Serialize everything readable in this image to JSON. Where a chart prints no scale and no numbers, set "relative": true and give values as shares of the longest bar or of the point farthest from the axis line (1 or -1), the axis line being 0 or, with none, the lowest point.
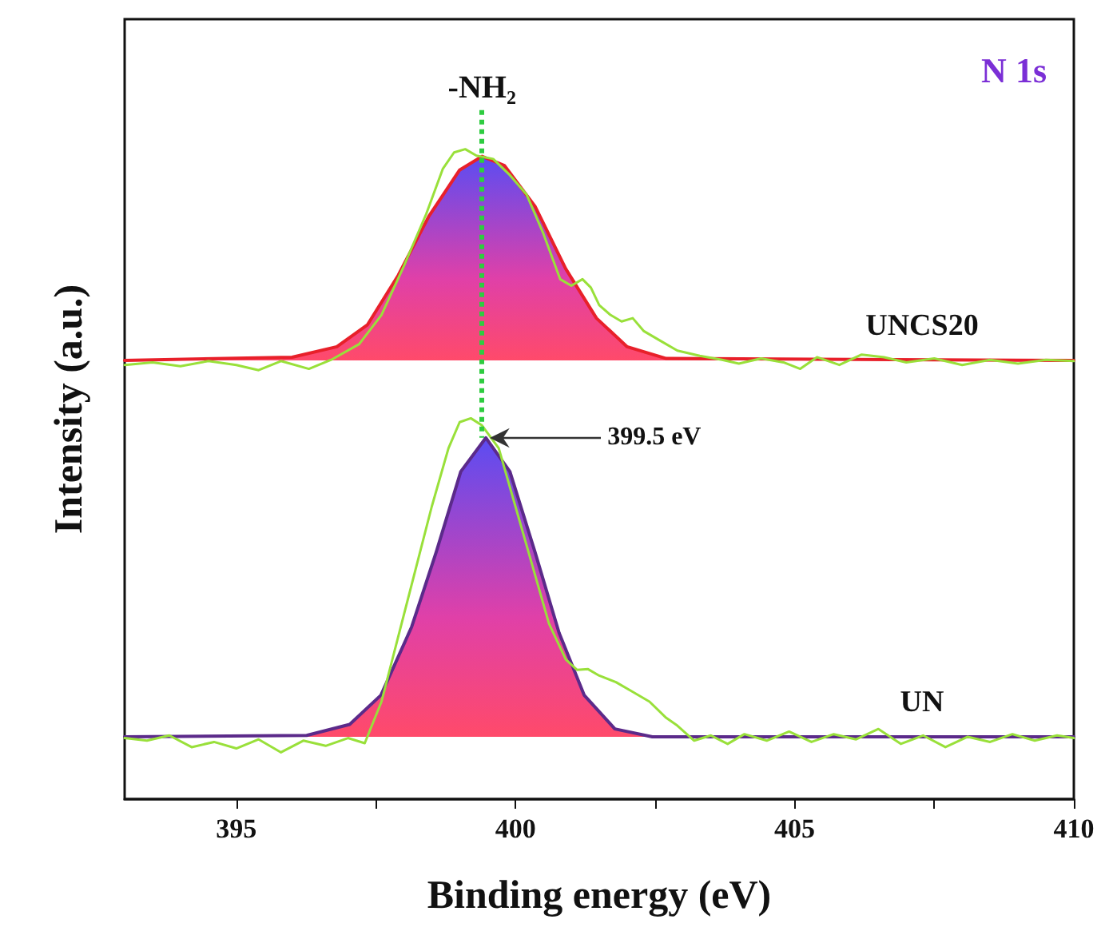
{
  "chart_data": {
    "type": "line",
    "title": "N 1s",
    "xlabel": "Binding energy (eV)",
    "ylabel": "Intensity (a.u.)",
    "relative": true,
    "xlim": [
      393,
      410
    ],
    "xticks": [
      395,
      {
        "value": 397.5,
        "label": null
      },
      400,
      {
        "value": 402.5,
        "label": null
      },
      405,
      {
        "value": 407.5,
        "label": null
      },
      410
    ],
    "grid": false,
    "legend": false,
    "marker": "none",
    "line_style": "solid",
    "series": [
      {
        "name": "UNCS20",
        "type": "area",
        "color": "#e8202a",
        "x": [
          393,
          396,
          396.8,
          397.35,
          397.9,
          398.45,
          399,
          399.4,
          399.8,
          400.35,
          400.9,
          401.45,
          402,
          402.7,
          410
        ],
        "values": [
          0.675,
          0.68,
          0.696,
          0.73,
          0.806,
          0.897,
          0.968,
          0.989,
          0.975,
          0.912,
          0.816,
          0.74,
          0.696,
          0.678,
          0.675
        ]
      },
      {
        "type": "line",
        "color": "#99e03a",
        "x": [
          393,
          393.5,
          394,
          394.5,
          395,
          395.4,
          395.8,
          396.3,
          396.7,
          397.2,
          397.6,
          398,
          398.4,
          398.7,
          398.9,
          399.1,
          399.3,
          399.6,
          399.9,
          400.2,
          400.5,
          400.8,
          401,
          401.2,
          401.35,
          401.5,
          401.7,
          401.9,
          402.1,
          402.3,
          402.6,
          402.9,
          403.3,
          403.7,
          404,
          404.4,
          404.8,
          405.1,
          405.4,
          405.8,
          406.2,
          406.6,
          407,
          407.5,
          408,
          408.5,
          409,
          409.5,
          410
        ],
        "values": [
          0.668,
          0.672,
          0.666,
          0.674,
          0.668,
          0.66,
          0.674,
          0.662,
          0.676,
          0.7,
          0.745,
          0.82,
          0.9,
          0.97,
          0.995,
          1,
          0.99,
          0.985,
          0.96,
          0.93,
          0.87,
          0.8,
          0.79,
          0.8,
          0.787,
          0.76,
          0.745,
          0.735,
          0.74,
          0.72,
          0.705,
          0.69,
          0.682,
          0.676,
          0.67,
          0.678,
          0.672,
          0.662,
          0.68,
          0.668,
          0.684,
          0.68,
          0.672,
          0.678,
          0.668,
          0.676,
          0.67,
          0.676,
          0.674
        ]
      },
      {
        "name": "UN",
        "type": "area",
        "color": "#5b2a8a",
        "x": [
          393,
          396.26,
          397.03,
          397.59,
          398.14,
          398.58,
          399.02,
          399.47,
          399.9,
          400.35,
          400.78,
          401.23,
          401.78,
          402.45,
          410
        ],
        "values": [
          0.096,
          0.098,
          0.115,
          0.16,
          0.265,
          0.38,
          0.504,
          0.556,
          0.504,
          0.38,
          0.256,
          0.16,
          0.108,
          0.096,
          0.096
        ]
      },
      {
        "type": "line",
        "color": "#99e03a",
        "x": [
          393,
          393.4,
          393.8,
          394.2,
          394.6,
          395,
          395.4,
          395.8,
          396.2,
          396.6,
          397,
          397.3,
          397.6,
          397.9,
          398.2,
          398.5,
          398.8,
          399,
          399.2,
          399.4,
          399.7,
          400,
          400.3,
          400.6,
          400.9,
          401.1,
          401.3,
          401.5,
          401.8,
          402.1,
          402.4,
          402.7,
          402.9,
          403.2,
          403.5,
          403.8,
          404.1,
          404.5,
          404.9,
          405.3,
          405.7,
          406.1,
          406.5,
          406.9,
          407.3,
          407.7,
          408.1,
          408.5,
          408.9,
          409.3,
          409.7,
          410
        ],
        "values": [
          0.094,
          0.09,
          0.098,
          0.08,
          0.088,
          0.078,
          0.092,
          0.072,
          0.09,
          0.082,
          0.094,
          0.086,
          0.15,
          0.25,
          0.35,
          0.45,
          0.54,
          0.58,
          0.586,
          0.575,
          0.54,
          0.45,
          0.36,
          0.27,
          0.215,
          0.199,
          0.2,
          0.19,
          0.18,
          0.165,
          0.15,
          0.125,
          0.113,
          0.09,
          0.098,
          0.085,
          0.1,
          0.09,
          0.104,
          0.088,
          0.1,
          0.092,
          0.108,
          0.085,
          0.098,
          0.08,
          0.096,
          0.088,
          0.1,
          0.09,
          0.098,
          0.094
        ]
      }
    ],
    "ref_lines": [
      {
        "axis": "x",
        "value": 399.4,
        "label": "-NH₂",
        "color": "#2ecc40",
        "line_style": "dotted"
      }
    ],
    "annotations": [
      "399.5 eV"
    ]
  }
}
